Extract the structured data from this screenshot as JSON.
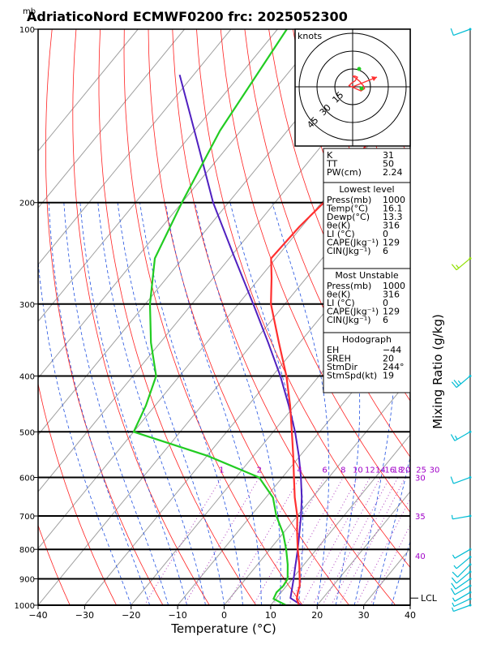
{
  "chart_data": {
    "type": "skewt",
    "title": "AdriaticoNord ECMWF0200  frc: 2025052300",
    "pressure_unit_label": "mb",
    "xlabel": "Temperature (°C)",
    "ylabel_right": "Mixing Ratio  (g/kg)",
    "xlim": [
      -40,
      40
    ],
    "ylim": [
      1000,
      100
    ],
    "x_ticks": [
      -40,
      -30,
      -20,
      -10,
      0,
      10,
      20,
      30,
      40
    ],
    "p_ticks": [
      1000,
      900,
      800,
      700,
      600,
      500,
      400,
      300,
      200,
      100
    ],
    "p_bold": [
      1000,
      900,
      800,
      700,
      600,
      500,
      400,
      300,
      200
    ],
    "mixing_ratio_labels": [
      "1",
      "2",
      "4",
      "6",
      "8",
      "10",
      "12",
      "14",
      "16",
      "18",
      "20",
      "25",
      "30"
    ],
    "mixing_ratio_values": [
      1,
      2,
      4,
      6,
      8,
      10,
      12,
      14,
      16,
      18,
      20,
      25,
      30
    ],
    "side_labels": [
      "30",
      "35",
      "40"
    ],
    "lcl_label": "LCL",
    "lcl_pressure": 972,
    "temperature": [
      {
        "p": 1000,
        "t": 16.1
      },
      {
        "p": 975,
        "t": 14.5
      },
      {
        "p": 950,
        "t": 13.6
      },
      {
        "p": 925,
        "t": 12.8
      },
      {
        "p": 900,
        "t": 11.6
      },
      {
        "p": 850,
        "t": 9.0
      },
      {
        "p": 800,
        "t": 6.0
      },
      {
        "p": 750,
        "t": 3.0
      },
      {
        "p": 700,
        "t": 0.0
      },
      {
        "p": 650,
        "t": -3.8
      },
      {
        "p": 600,
        "t": -7.5
      },
      {
        "p": 550,
        "t": -11.5
      },
      {
        "p": 500,
        "t": -16.0
      },
      {
        "p": 450,
        "t": -21.0
      },
      {
        "p": 400,
        "t": -27.0
      },
      {
        "p": 350,
        "t": -34.5
      },
      {
        "p": 300,
        "t": -43.0
      },
      {
        "p": 270,
        "t": -47.5
      },
      {
        "p": 250,
        "t": -51.0
      },
      {
        "p": 220,
        "t": -50.5
      },
      {
        "p": 200,
        "t": -49.5
      },
      {
        "p": 170,
        "t": -50.0
      },
      {
        "p": 150,
        "t": -51.0
      },
      {
        "p": 120,
        "t": -54.0
      },
      {
        "p": 100,
        "t": -58.0
      }
    ],
    "dewpoint": [
      {
        "p": 1000,
        "t": 13.3
      },
      {
        "p": 975,
        "t": 9.5
      },
      {
        "p": 950,
        "t": 9.0
      },
      {
        "p": 925,
        "t": 9.3
      },
      {
        "p": 900,
        "t": 9.0
      },
      {
        "p": 850,
        "t": 6.5
      },
      {
        "p": 800,
        "t": 3.5
      },
      {
        "p": 750,
        "t": 0.0
      },
      {
        "p": 700,
        "t": -4.5
      },
      {
        "p": 650,
        "t": -8.5
      },
      {
        "p": 600,
        "t": -15.0
      },
      {
        "p": 550,
        "t": -30.0
      },
      {
        "p": 500,
        "t": -50.0
      },
      {
        "p": 450,
        "t": -52.0
      },
      {
        "p": 400,
        "t": -55.0
      },
      {
        "p": 350,
        "t": -62.0
      },
      {
        "p": 300,
        "t": -69.0
      },
      {
        "p": 250,
        "t": -76.0
      },
      {
        "p": 200,
        "t": -80.0
      },
      {
        "p": 150,
        "t": -84.5
      },
      {
        "p": 100,
        "t": -88.0
      }
    ],
    "parcel": [
      {
        "p": 1000,
        "t": 16.6
      },
      {
        "p": 972,
        "t": 13.0
      },
      {
        "p": 950,
        "t": 12.2
      },
      {
        "p": 900,
        "t": 10.3
      },
      {
        "p": 850,
        "t": 8.2
      },
      {
        "p": 800,
        "t": 6.0
      },
      {
        "p": 750,
        "t": 3.5
      },
      {
        "p": 700,
        "t": 0.8
      },
      {
        "p": 650,
        "t": -2.3
      },
      {
        "p": 600,
        "t": -6.0
      },
      {
        "p": 550,
        "t": -10.3
      },
      {
        "p": 500,
        "t": -15.3
      },
      {
        "p": 450,
        "t": -21.3
      },
      {
        "p": 400,
        "t": -28.3
      },
      {
        "p": 350,
        "t": -36.8
      },
      {
        "p": 300,
        "t": -46.8
      },
      {
        "p": 250,
        "t": -58.8
      },
      {
        "p": 200,
        "t": -73.3
      },
      {
        "p": 150,
        "t": -90.0
      },
      {
        "p": 120,
        "t": -103.0
      }
    ],
    "wind_barbs": [
      {
        "p": 1000,
        "dir": 250,
        "spd": 5
      },
      {
        "p": 975,
        "dir": 245,
        "spd": 5
      },
      {
        "p": 950,
        "dir": 240,
        "spd": 5
      },
      {
        "p": 925,
        "dir": 240,
        "spd": 10
      },
      {
        "p": 900,
        "dir": 235,
        "spd": 10
      },
      {
        "p": 875,
        "dir": 230,
        "spd": 10
      },
      {
        "p": 850,
        "dir": 225,
        "spd": 10
      },
      {
        "p": 825,
        "dir": 230,
        "spd": 5
      },
      {
        "p": 800,
        "dir": 240,
        "spd": 5
      },
      {
        "p": 700,
        "dir": 260,
        "spd": 5
      },
      {
        "p": 600,
        "dir": 250,
        "spd": 10
      },
      {
        "p": 500,
        "dir": 240,
        "spd": 15
      },
      {
        "p": 400,
        "dir": 230,
        "spd": 25
      },
      {
        "p": 250,
        "dir": 230,
        "spd": 15
      },
      {
        "p": 100,
        "dir": 250,
        "spd": 10
      }
    ],
    "hodograph": {
      "unit_label": "knots",
      "ring_labels": [
        "15",
        "30",
        "45"
      ],
      "points": [
        {
          "u": 0.0,
          "v": 9.0
        },
        {
          "u": 3.0,
          "v": 7.0
        },
        {
          "u": 6.0,
          "v": 4.5
        },
        {
          "u": 8.0,
          "v": 2.0
        },
        {
          "u": 9.0,
          "v": 1.0
        },
        {
          "u": 10.0,
          "v": -1.5
        },
        {
          "u": 7.0,
          "v": -3.5
        },
        {
          "u": -3.0,
          "v": 1.0
        },
        {
          "u": -1.0,
          "v": 3.0
        },
        {
          "u": 2.0,
          "v": 5.0
        },
        {
          "u": 4.0,
          "v": 8.0
        },
        {
          "u": 2.0,
          "v": 9.0
        },
        {
          "u": 0.0,
          "v": 9.0
        }
      ]
    },
    "indices": [
      {
        "label": "K",
        "value": "31"
      },
      {
        "label": "TT",
        "value": "50"
      },
      {
        "label": "PW(cm)",
        "value": "2.24"
      }
    ],
    "lowest_level": {
      "header": "Lowest level",
      "rows": [
        {
          "label": "Press(mb)",
          "value": "1000"
        },
        {
          "label": "Temp(°C)",
          "value": "16.1"
        },
        {
          "label": "Dewp(°C)",
          "value": "13.3"
        },
        {
          "label": "θe(K)",
          "value": "316"
        },
        {
          "label": "LI (°C)",
          "value": "0"
        },
        {
          "label": "CAPE(Jkg⁻¹)",
          "value": "129"
        },
        {
          "label": "CIN(Jkg⁻¹)",
          "value": "6"
        }
      ]
    },
    "most_unstable": {
      "header": "Most Unstable",
      "rows": [
        {
          "label": "Press(mb)",
          "value": "1000"
        },
        {
          "label": "θe(K)",
          "value": "316"
        },
        {
          "label": "LI (°C)",
          "value": "0"
        },
        {
          "label": "CAPE(Jkg⁻¹)",
          "value": "129"
        },
        {
          "label": "CIN(Jkg⁻¹)",
          "value": "6"
        }
      ]
    },
    "hodograph_box": {
      "header": "Hodograph",
      "rows": [
        {
          "label": "EH",
          "value": "−44"
        },
        {
          "label": "SREH",
          "value": "20"
        },
        {
          "label": "StmDir",
          "value": "244°"
        },
        {
          "label": "StmSpd(kt)",
          "value": "19"
        }
      ]
    },
    "colors": {
      "temperature": "#ff3030",
      "dewpoint": "#22cc22",
      "parcel": "#5020c0",
      "isotherm": "#a0a0a0",
      "dry_adiabat": "#ff2020",
      "moist_adiabat": "#2050e0",
      "mixing_ratio": "#b040c0",
      "wind_barb": "#00bcd4",
      "wind_barb_highlight": "#90e000",
      "side_label": "#a000c8"
    }
  }
}
